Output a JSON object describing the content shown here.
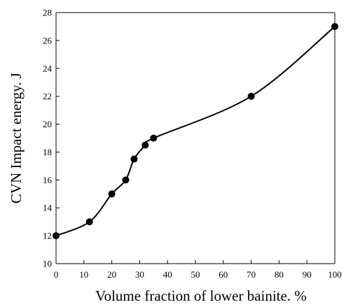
{
  "chart_data": {
    "type": "line",
    "title": "",
    "xlabel": "Volume fraction of lower bainite. %",
    "ylabel": "CVN Impact energy. J",
    "xlim": [
      0,
      100
    ],
    "ylim": [
      10,
      28
    ],
    "xticks": [
      0,
      10,
      20,
      30,
      40,
      50,
      60,
      70,
      80,
      90,
      100
    ],
    "yticks": [
      10,
      12,
      14,
      16,
      18,
      20,
      22,
      24,
      26,
      28
    ],
    "grid": false,
    "legend": "none",
    "smooth": true,
    "series": [
      {
        "x": [
          0,
          12,
          20,
          25,
          28,
          32,
          35,
          70,
          100
        ],
        "values": [
          12,
          13,
          15,
          16,
          17.5,
          18.5,
          19,
          22,
          27
        ],
        "color": "#000000",
        "marker": "circle"
      }
    ]
  }
}
